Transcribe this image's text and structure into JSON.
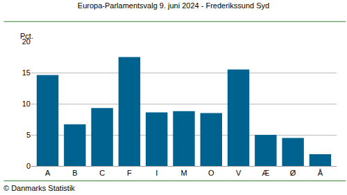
{
  "chart_data": {
    "type": "bar",
    "title": "Europa-Parlamentsvalg 9. juni 2024 - Frederikssund Syd",
    "y_label": "Pct.",
    "source": "© Danmarks Statistik",
    "categories": [
      "A",
      "B",
      "C",
      "F",
      "I",
      "M",
      "O",
      "V",
      "Æ",
      "Ø",
      "Å"
    ],
    "values": [
      14.6,
      6.7,
      9.3,
      17.5,
      8.6,
      8.8,
      8.5,
      15.5,
      5.0,
      4.5,
      1.9
    ],
    "color": "#00628f",
    "ylim": [
      0,
      20
    ],
    "yticks": [
      0,
      5,
      10,
      15,
      20
    ],
    "grid": true
  }
}
